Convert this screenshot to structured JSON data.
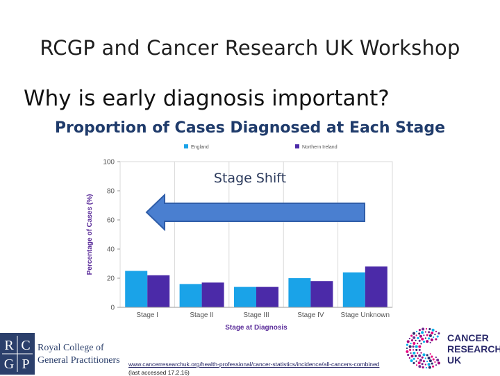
{
  "slide": {
    "title": "RCGP and Cancer Research UK Workshop",
    "question": "Why is early diagnosis important?",
    "heading": "Proportion of Cases Diagnosed at Each Stage"
  },
  "chart_data": {
    "type": "bar",
    "title": "",
    "xlabel": "Stage at Diagnosis",
    "ylabel": "Percentage of Cases (%)",
    "ylim": [
      0,
      100
    ],
    "yticks": [
      0,
      20,
      40,
      60,
      80,
      100
    ],
    "grid": "vertical",
    "legend_position": "top",
    "categories": [
      "Stage I",
      "Stage II",
      "Stage III",
      "Stage IV",
      "Stage Unknown"
    ],
    "series": [
      {
        "name": "England",
        "color": "#1aa3e8",
        "values": [
          25,
          16,
          14,
          20,
          24
        ]
      },
      {
        "name": "Northern Ireland",
        "color": "#4b2aa8",
        "values": [
          22,
          17,
          14,
          18,
          28
        ]
      }
    ],
    "annotation": {
      "text": "Stage Shift",
      "arrow_color": "#4a7fd0",
      "arrow_direction": "left"
    }
  },
  "footer": {
    "url": "www.cancerresearchuk.org/health-professional/cancer-statistics/incidence/all-cancers-combined",
    "accessed": "(last accessed 17.2.16)"
  },
  "logos": {
    "rcgp_letters": [
      "R",
      "C",
      "G",
      "P"
    ],
    "rcgp_name_line1": "Royal College of",
    "rcgp_name_line2": "General Practitioners",
    "cruk_line1": "CANCER",
    "cruk_line2": "RESEARCH",
    "cruk_line3": "UK"
  }
}
